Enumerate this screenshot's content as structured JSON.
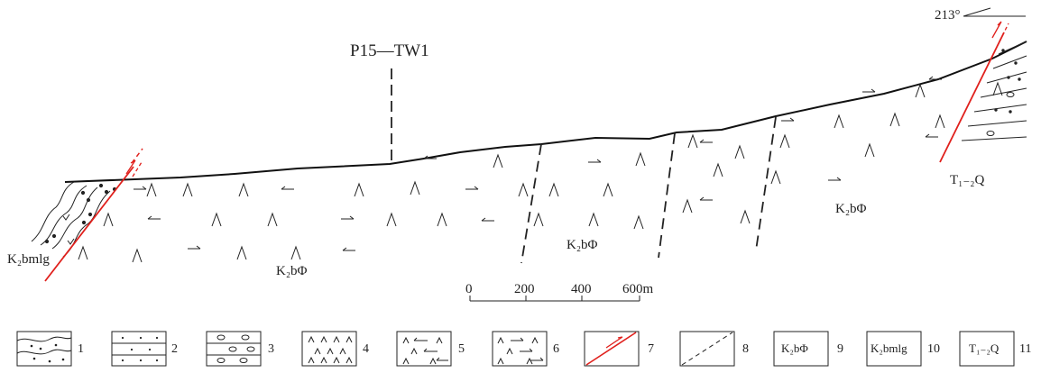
{
  "well_label": "P15—TW1",
  "azimuth": "213°",
  "formations": {
    "left": "K₂bmlg",
    "middle_lower": "K₂bΦ",
    "middle": "K₂bΦ",
    "right": "K₂bΦ",
    "far_right": "T₁₋₂Q"
  },
  "scale_bar": {
    "ticks": [
      "0",
      "200",
      "400",
      "600m"
    ]
  },
  "legend": [
    {
      "num": "1",
      "text": ""
    },
    {
      "num": "2",
      "text": ""
    },
    {
      "num": "3",
      "text": ""
    },
    {
      "num": "4",
      "text": ""
    },
    {
      "num": "5",
      "text": ""
    },
    {
      "num": "6",
      "text": ""
    },
    {
      "num": "7",
      "text": ""
    },
    {
      "num": "8",
      "text": ""
    },
    {
      "num": "9",
      "text": "K₂bΦ"
    },
    {
      "num": "10",
      "text": "K₂bmlg"
    },
    {
      "num": "11",
      "text": "T₁₋₂Q"
    }
  ],
  "colors": {
    "fault": "#e0201c",
    "ink": "#222222"
  }
}
